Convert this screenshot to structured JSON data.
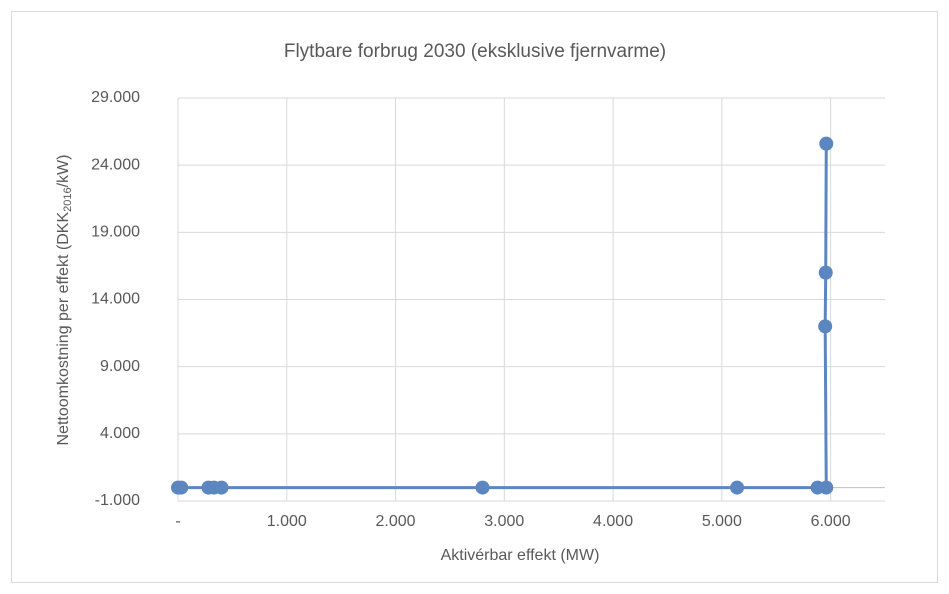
{
  "chart_data": {
    "type": "scatter-line",
    "title": "Flytbare forbrug 2030 (eksklusive fjernvarme)",
    "x_label": "Aktivérbar effekt (MW)",
    "y_label_parts": [
      "Nettoomkostning per effekt (DKK",
      "2016",
      "/kW)"
    ],
    "x": [
      0,
      30,
      280,
      330,
      400,
      2800,
      5140,
      5880,
      5960,
      5950,
      5955,
      5960
    ],
    "values": [
      0,
      0,
      0,
      0,
      0,
      0,
      0,
      0,
      0,
      12000,
      16000,
      25600
    ],
    "color": "#5b86c0",
    "xlim": [
      0,
      6500
    ],
    "xticks": [
      {
        "value": 0,
        "label": "-"
      },
      {
        "value": 1000,
        "label": "1.000"
      },
      {
        "value": 2000,
        "label": "2.000"
      },
      {
        "value": 3000,
        "label": "3.000"
      },
      {
        "value": 4000,
        "label": "4.000"
      },
      {
        "value": 5000,
        "label": "5.000"
      },
      {
        "value": 6000,
        "label": "6.000"
      }
    ],
    "ylim": [
      -1000,
      29000
    ],
    "yticks": [
      {
        "value": -1000,
        "label": "-1.000"
      },
      {
        "value": 4000,
        "label": "4.000"
      },
      {
        "value": 9000,
        "label": "9.000"
      },
      {
        "value": 14000,
        "label": "14.000"
      },
      {
        "value": 19000,
        "label": "19.000"
      },
      {
        "value": 24000,
        "label": "24.000"
      },
      {
        "value": 29000,
        "label": "29.000"
      }
    ],
    "grid": true
  }
}
